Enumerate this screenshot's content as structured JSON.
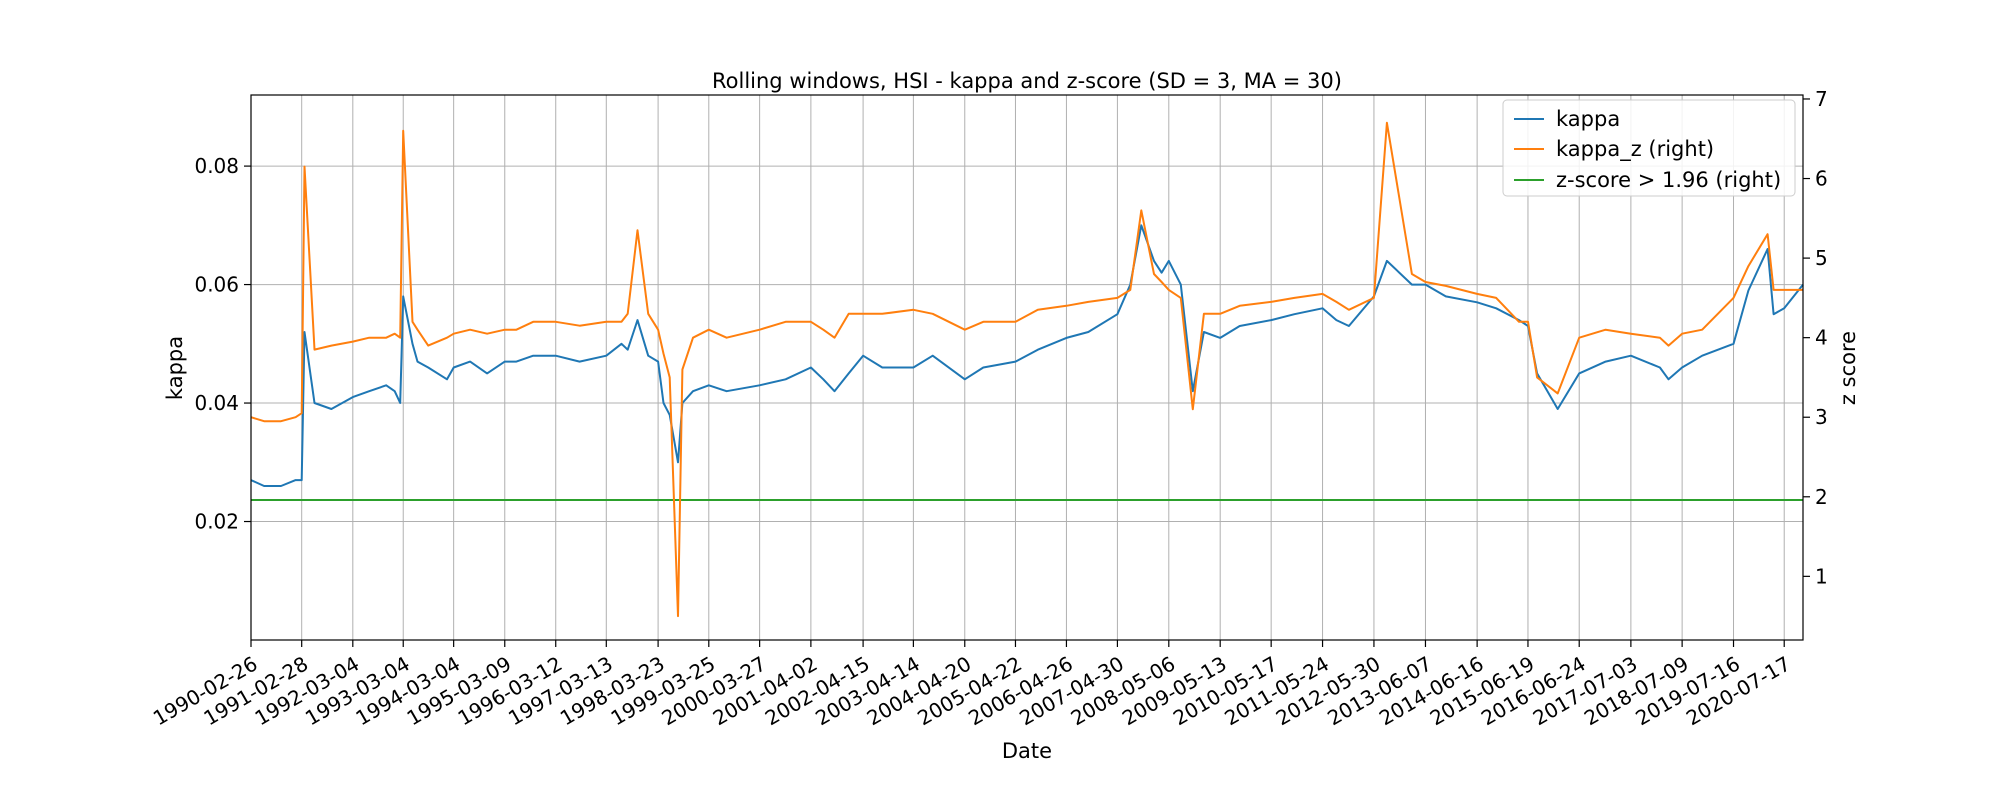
{
  "chart_data": {
    "type": "line",
    "title": "Rolling windows, HSI - kappa and z-score (SD = 3, MA = 30)",
    "xlabel": "Date",
    "ylabel": "kappa",
    "ylabel_right": "z score",
    "ylim": [
      0.0,
      0.092
    ],
    "ylim_right": [
      0.2,
      7.05
    ],
    "yticks": [
      0.02,
      0.04,
      0.06,
      0.08
    ],
    "ytick_labels": [
      "0.02",
      "0.04",
      "0.06",
      "0.08"
    ],
    "yticks_right": [
      1,
      2,
      3,
      4,
      5,
      6,
      7
    ],
    "ytick_labels_right": [
      "1",
      "2",
      "3",
      "4",
      "5",
      "6",
      "7"
    ],
    "xticks": [
      "1990-02-26",
      "1991-02-28",
      "1992-03-04",
      "1993-03-04",
      "1994-03-04",
      "1995-03-09",
      "1996-03-12",
      "1997-03-13",
      "1998-03-23",
      "1999-03-25",
      "2000-03-27",
      "2001-04-02",
      "2002-04-15",
      "2003-04-14",
      "2004-04-20",
      "2005-04-22",
      "2006-04-26",
      "2007-04-30",
      "2008-05-06",
      "2009-05-13",
      "2010-05-17",
      "2011-05-24",
      "2012-05-30",
      "2013-06-07",
      "2014-06-16",
      "2015-06-19",
      "2016-06-24",
      "2017-07-03",
      "2018-07-09",
      "2019-07-16",
      "2020-07-17"
    ],
    "x_range": [
      "1990-02-26",
      "2020-11-30"
    ],
    "grid": true,
    "legend_position": "top-right",
    "series": [
      {
        "name": "kappa",
        "axis": "left",
        "color": "#1f77b4",
        "x": [
          "1990-02-26",
          "1990-06-01",
          "1990-10-01",
          "1991-01-15",
          "1991-02-28",
          "1991-03-20",
          "1991-06-01",
          "1991-10-01",
          "1992-03-04",
          "1992-07-01",
          "1992-11-01",
          "1993-01-01",
          "1993-02-10",
          "1993-03-04",
          "1993-05-10",
          "1993-06-15",
          "1993-09-01",
          "1994-01-15",
          "1994-03-04",
          "1994-07-01",
          "1994-11-01",
          "1995-03-09",
          "1995-06-01",
          "1995-10-01",
          "1996-03-12",
          "1996-09-01",
          "1997-03-13",
          "1997-07-01",
          "1997-08-15",
          "1997-10-25",
          "1998-01-10",
          "1998-03-23",
          "1998-05-01",
          "1998-06-15",
          "1998-08-14",
          "1998-09-15",
          "1998-12-01",
          "1999-03-25",
          "1999-08-01",
          "2000-03-27",
          "2000-10-01",
          "2001-04-02",
          "2001-07-01",
          "2001-09-20",
          "2002-01-01",
          "2002-04-15",
          "2002-09-01",
          "2003-04-14",
          "2003-09-01",
          "2004-04-20",
          "2004-09-01",
          "2005-04-22",
          "2005-10-01",
          "2006-04-26",
          "2006-10-01",
          "2007-04-30",
          "2007-08-01",
          "2007-10-20",
          "2008-01-20",
          "2008-03-15",
          "2008-05-06",
          "2008-08-01",
          "2008-10-27",
          "2009-01-15",
          "2009-05-13",
          "2009-10-01",
          "2010-05-17",
          "2010-11-01",
          "2011-05-24",
          "2011-09-01",
          "2011-12-01",
          "2012-05-30",
          "2012-09-01",
          "2013-03-01",
          "2013-06-07",
          "2013-11-01",
          "2014-06-16",
          "2014-11-01",
          "2015-04-15",
          "2015-06-19",
          "2015-08-24",
          "2016-01-20",
          "2016-06-24",
          "2017-01-01",
          "2017-07-03",
          "2018-01-29",
          "2018-04-01",
          "2018-07-09",
          "2018-12-01",
          "2019-07-16",
          "2019-11-01",
          "2020-03-19",
          "2020-05-01",
          "2020-07-17",
          "2020-11-30"
        ],
        "values": [
          0.027,
          0.026,
          0.026,
          0.027,
          0.027,
          0.052,
          0.04,
          0.039,
          0.041,
          0.042,
          0.043,
          0.042,
          0.04,
          0.058,
          0.05,
          0.047,
          0.046,
          0.044,
          0.046,
          0.047,
          0.045,
          0.047,
          0.047,
          0.048,
          0.048,
          0.047,
          0.048,
          0.05,
          0.049,
          0.054,
          0.048,
          0.047,
          0.04,
          0.038,
          0.03,
          0.04,
          0.042,
          0.043,
          0.042,
          0.043,
          0.044,
          0.046,
          0.044,
          0.042,
          0.045,
          0.048,
          0.046,
          0.046,
          0.048,
          0.044,
          0.046,
          0.047,
          0.049,
          0.051,
          0.052,
          0.055,
          0.06,
          0.07,
          0.064,
          0.062,
          0.064,
          0.06,
          0.042,
          0.052,
          0.051,
          0.053,
          0.054,
          0.055,
          0.056,
          0.054,
          0.053,
          0.058,
          0.064,
          0.06,
          0.06,
          0.058,
          0.057,
          0.056,
          0.054,
          0.053,
          0.045,
          0.039,
          0.045,
          0.047,
          0.048,
          0.046,
          0.044,
          0.046,
          0.048,
          0.05,
          0.059,
          0.066,
          0.055,
          0.056,
          0.06
        ]
      },
      {
        "name": "kappa_z (right)",
        "axis": "right",
        "color": "#ff7f0e",
        "x": [
          "1990-02-26",
          "1990-06-01",
          "1990-10-01",
          "1991-01-15",
          "1991-02-28",
          "1991-03-20",
          "1991-06-01",
          "1991-10-01",
          "1992-03-04",
          "1992-07-01",
          "1992-11-01",
          "1993-01-01",
          "1993-02-10",
          "1993-03-04",
          "1993-05-10",
          "1993-06-15",
          "1993-09-01",
          "1994-01-15",
          "1994-03-04",
          "1994-07-01",
          "1994-11-01",
          "1995-03-09",
          "1995-06-01",
          "1995-10-01",
          "1996-03-12",
          "1996-09-01",
          "1997-03-13",
          "1997-07-01",
          "1997-08-15",
          "1997-10-25",
          "1998-01-10",
          "1998-03-23",
          "1998-05-01",
          "1998-06-15",
          "1998-08-14",
          "1998-09-15",
          "1998-12-01",
          "1999-03-25",
          "1999-08-01",
          "2000-03-27",
          "2000-10-01",
          "2001-04-02",
          "2001-07-01",
          "2001-09-20",
          "2002-01-01",
          "2002-04-15",
          "2002-09-01",
          "2003-04-14",
          "2003-09-01",
          "2004-04-20",
          "2004-09-01",
          "2005-04-22",
          "2005-10-01",
          "2006-04-26",
          "2006-10-01",
          "2007-04-30",
          "2007-08-01",
          "2007-10-20",
          "2008-01-20",
          "2008-03-15",
          "2008-05-06",
          "2008-08-01",
          "2008-10-27",
          "2009-01-15",
          "2009-05-13",
          "2009-10-01",
          "2010-05-17",
          "2010-11-01",
          "2011-05-24",
          "2011-09-01",
          "2011-12-01",
          "2012-05-30",
          "2012-09-01",
          "2013-03-01",
          "2013-06-07",
          "2013-11-01",
          "2014-06-16",
          "2014-11-01",
          "2015-04-15",
          "2015-06-19",
          "2015-08-24",
          "2016-01-20",
          "2016-06-24",
          "2017-01-01",
          "2017-07-03",
          "2018-01-29",
          "2018-04-01",
          "2018-07-09",
          "2018-12-01",
          "2019-07-16",
          "2019-11-01",
          "2020-03-19",
          "2020-05-01",
          "2020-07-17",
          "2020-11-30"
        ],
        "values": [
          3.0,
          2.95,
          2.95,
          3.0,
          3.05,
          6.15,
          3.85,
          3.9,
          3.95,
          4.0,
          4.0,
          4.05,
          4.0,
          6.6,
          4.2,
          4.1,
          3.9,
          4.0,
          4.05,
          4.1,
          4.05,
          4.1,
          4.1,
          4.2,
          4.2,
          4.15,
          4.2,
          4.2,
          4.3,
          5.35,
          4.3,
          4.1,
          3.8,
          3.5,
          0.5,
          3.6,
          4.0,
          4.1,
          4.0,
          4.1,
          4.2,
          4.2,
          4.1,
          4.0,
          4.3,
          4.3,
          4.3,
          4.35,
          4.3,
          4.1,
          4.2,
          4.2,
          4.35,
          4.4,
          4.45,
          4.5,
          4.6,
          5.6,
          4.8,
          4.7,
          4.6,
          4.5,
          3.1,
          4.3,
          4.3,
          4.4,
          4.45,
          4.5,
          4.55,
          4.45,
          4.35,
          4.5,
          6.7,
          4.8,
          4.7,
          4.65,
          4.55,
          4.5,
          4.2,
          4.2,
          3.5,
          3.3,
          4.0,
          4.1,
          4.05,
          4.0,
          3.9,
          4.05,
          4.1,
          4.5,
          4.9,
          5.3,
          4.6,
          4.6,
          4.6
        ]
      },
      {
        "name": "z-score > 1.96 (right)",
        "axis": "right",
        "color": "#2ca02c",
        "x": [
          "1990-02-26",
          "2020-11-30"
        ],
        "values": [
          1.96,
          1.96
        ]
      }
    ]
  }
}
